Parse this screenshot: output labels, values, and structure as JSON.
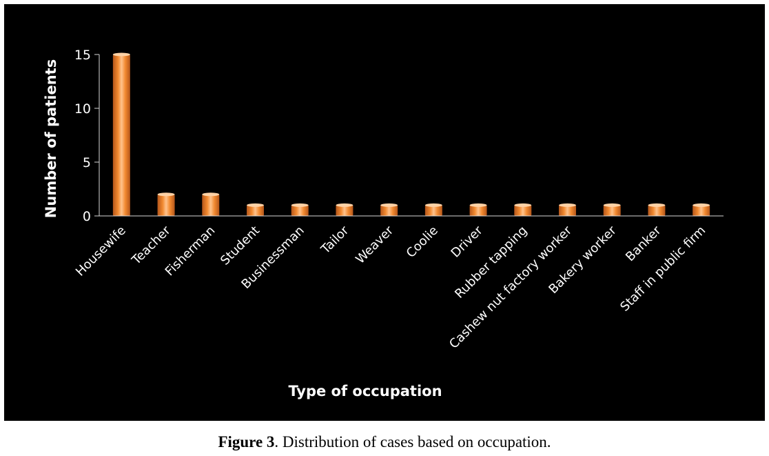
{
  "chart_data": {
    "type": "bar",
    "title": "",
    "xlabel": "Type of occupation",
    "ylabel": "Number of patients",
    "categories": [
      "Housewife",
      "Teacher",
      "Fisherman",
      "Student",
      "Businessman",
      "Tailor",
      "Weaver",
      "Coolie",
      "Driver",
      "Rubber tapping",
      "Cashew nut factory worker",
      "Bakery worker",
      "Banker",
      "Staff in public firm"
    ],
    "values": [
      15,
      2,
      2,
      1,
      1,
      1,
      1,
      1,
      1,
      1,
      1,
      1,
      1,
      1
    ],
    "ylim": [
      0,
      15
    ],
    "yticks": [
      0,
      5,
      10,
      15
    ],
    "grid": false,
    "legend": "none",
    "background": "#000000",
    "text_color": "#ffffff",
    "bar_color": "#f28a30"
  },
  "caption": {
    "label": "Figure 3",
    "text": ". Distribution of cases based on occupation."
  }
}
